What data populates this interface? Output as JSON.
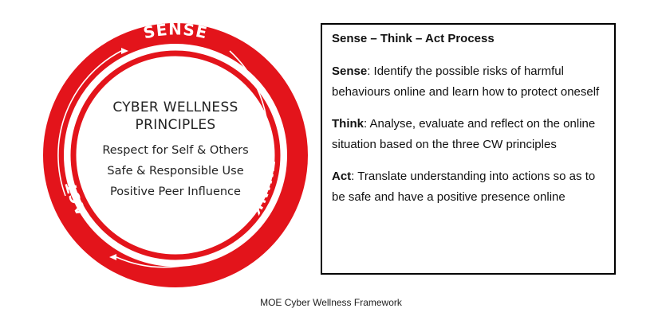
{
  "cycle": {
    "labels": {
      "top": "SENSE",
      "right": "THINK",
      "left": "ACT"
    },
    "ring_color": "#e3141b",
    "text_color": "#ffffff",
    "center_title": [
      "CYBER WELLNESS",
      "PRINCIPLES"
    ],
    "principles": [
      "Respect for Self & Others",
      "Safe & Responsible Use",
      "Positive Peer Influence"
    ]
  },
  "process": {
    "heading": "Sense – Think – Act Process",
    "steps": [
      {
        "label": "Sense",
        "separator": ": ",
        "text": "Identify the possible risks of harmful behaviours online and learn how to protect oneself"
      },
      {
        "label": "Think",
        "separator": ": ",
        "text": "Analyse, evaluate and reflect on the online situation based on the three CW principles"
      },
      {
        "label": "Act",
        "separator": ": ",
        "text": "Translate understanding into actions so as to be safe and have a positive presence online"
      }
    ]
  },
  "caption": "MOE Cyber Wellness Framework"
}
